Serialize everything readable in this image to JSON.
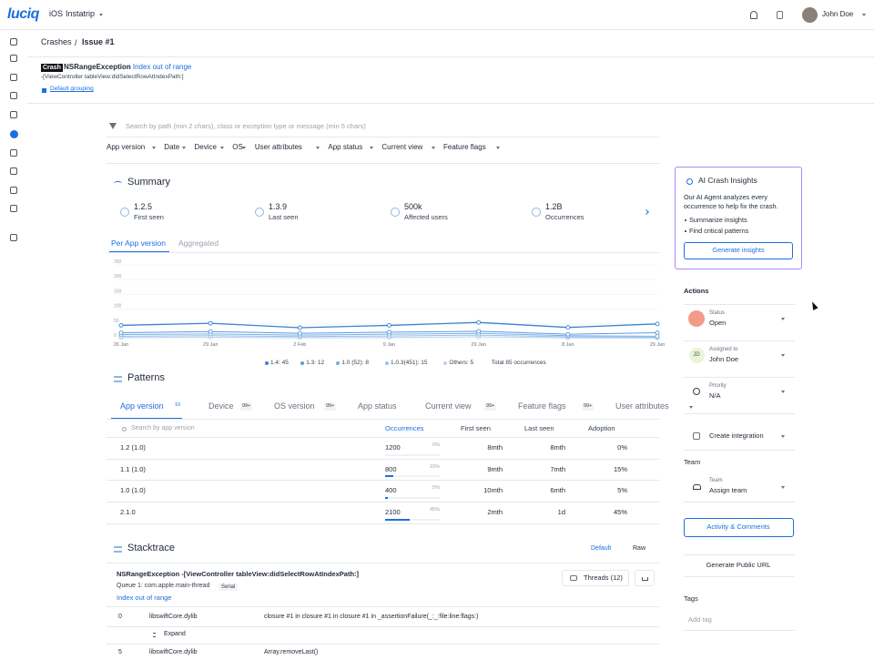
{
  "topbar": {
    "logo": "luciq",
    "platform": "iOS",
    "app": "Instatrip",
    "user": "John Doe"
  },
  "breadcrumb": [
    "Crashes",
    "Issue #1"
  ],
  "issue": {
    "badge": "Crash",
    "exception": "NSRangeException",
    "reason": "- Index out of range",
    "signature": "-[ViewController tableView:didSelectRowAtIndexPath:]",
    "grouping": "Default grouping"
  },
  "search_placeholder": "Search by path (min 2 chars), class or exception type or message (min 5 chars)",
  "filters": [
    "App version",
    "Date",
    "Device",
    "OS",
    "User attributes",
    "App status",
    "Current view",
    "Feature flags"
  ],
  "summary": {
    "title": "Summary",
    "stats": [
      {
        "value": "1.2.5",
        "label": "First seen"
      },
      {
        "value": "1.3.9",
        "label": "Last seen"
      },
      {
        "value": "500k",
        "label": "Affected users"
      },
      {
        "value": "1.2B",
        "label": "Occurrences"
      }
    ],
    "tabs": [
      "Per App version",
      "Aggregated"
    ]
  },
  "chart": {
    "type": "line",
    "categories": [
      "26 Jan",
      "29 Jan",
      "2 Feb",
      "9 Jan",
      "29 Jan",
      "8 Jan",
      "29 Jan"
    ],
    "ylim": [
      0,
      250
    ],
    "yticks": [
      0,
      50,
      100,
      150,
      200,
      250
    ],
    "series": [
      {
        "name": "1.4: 45",
        "color": "#3b82d6",
        "values": [
          45,
          52,
          37,
          45,
          55,
          38,
          50
        ]
      },
      {
        "name": "1.3: 12",
        "color": "#5a9be0",
        "values": [
          20,
          24,
          18,
          22,
          25,
          15,
          20
        ]
      },
      {
        "name": "1.0 (52): 8",
        "color": "#7aaee6",
        "values": [
          14,
          16,
          12,
          15,
          18,
          10,
          8
        ]
      },
      {
        "name": "1.0.3(451): 15",
        "color": "#98c1ec",
        "values": [
          8,
          10,
          7,
          9,
          12,
          6,
          5
        ]
      },
      {
        "name": "Others: 5",
        "color": "#b8d4f2",
        "values": [
          4,
          5,
          3,
          4,
          6,
          3,
          2
        ]
      }
    ],
    "total": "Total 85 occurrences"
  },
  "patterns": {
    "title": "Patterns",
    "tabs": [
      {
        "label": "App version",
        "count": "10"
      },
      {
        "label": "Device",
        "count": "99+"
      },
      {
        "label": "OS version",
        "count": "99+"
      },
      {
        "label": "App status"
      },
      {
        "label": "Current view",
        "count": "99+"
      },
      {
        "label": "Feature flags",
        "count": "99+"
      },
      {
        "label": "User attributes"
      }
    ],
    "search_placeholder": "Search by app version",
    "columns": [
      "Occurrences",
      "First seen",
      "Last seen",
      "Adoption"
    ],
    "rows": [
      [
        "1.2 (1.0)",
        "1200",
        "0%",
        "8mth",
        "8mth",
        "0%"
      ],
      [
        "1.1 (1.0)",
        "800",
        "15%",
        "9mth",
        "7mth",
        "15%"
      ],
      [
        "1.0 (1.0)",
        "400",
        "5%",
        "10mth",
        "6mth",
        "5%"
      ],
      [
        "2.1.0",
        "2100",
        "45%",
        "2mth",
        "1d",
        "45%"
      ]
    ]
  },
  "stacktrace": {
    "title": "Stacktrace",
    "toggle": [
      "Default",
      "Raw"
    ],
    "header": "NSRangeException -[ViewController tableView:didSelectRowAtIndexPath:]",
    "queue": "Queue 1: com.apple.main-thread",
    "queue_badge": "Serial",
    "message": "Index out of range",
    "threads": "Threads (12)",
    "frames": [
      {
        "index": "0",
        "lib": "libswiftCore.dylib",
        "symbol": "closure #1 in closure #1 in closure #1 in _assertionFailure(_:_:file:line:flags:)"
      },
      {
        "expand": "Expand"
      },
      {
        "index": "5",
        "lib": "libswiftCore.dylib",
        "symbol": "Array.removeLast()"
      }
    ]
  },
  "ai": {
    "title": "AI Crash Insights",
    "text": "Our AI Agent analyzes every occurrence to help fix the crash.",
    "bullets": [
      "Summarize insights",
      "Find critical patterns"
    ],
    "button": "Generate insights"
  },
  "actions": {
    "title": "Actions",
    "items": [
      {
        "label": "Status",
        "value": "Open"
      },
      {
        "label": "Assigned to",
        "value": "John Doe",
        "avatar": "JD"
      },
      {
        "label": "Priority",
        "value": "N/A"
      }
    ],
    "integration": "Create integration",
    "team_title": "Team",
    "team": {
      "label": "Team",
      "value": "Assign team"
    },
    "activity": "Activity & Comments",
    "public_url": "Generate Public URL",
    "tags_title": "Tags",
    "tag_placeholder": "Add tag"
  }
}
